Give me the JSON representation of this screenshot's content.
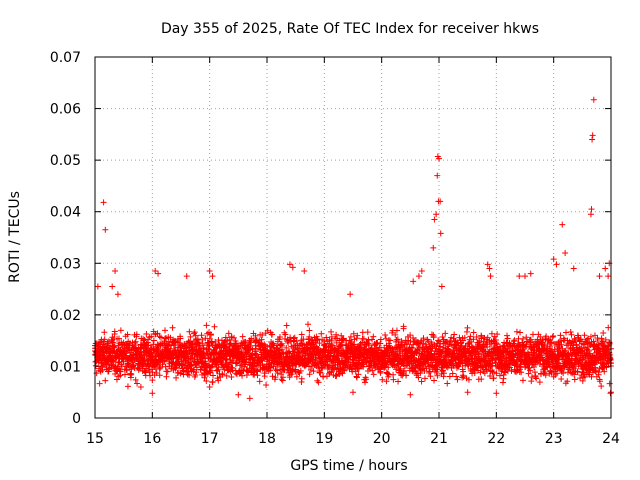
{
  "chart_data": {
    "type": "scatter",
    "title": "Day 355 of 2025, Rate Of TEC Index for receiver hkws",
    "xlabel": "GPS time / hours",
    "ylabel": "ROTI / TECUs",
    "xlim": [
      15,
      24
    ],
    "ylim": [
      0,
      0.07
    ],
    "x_ticks": [
      15,
      16,
      17,
      18,
      19,
      20,
      21,
      22,
      23,
      24
    ],
    "x_tick_labels": [
      "15",
      "16",
      "17",
      "18",
      "19",
      "20",
      "21",
      "22",
      "23",
      "24"
    ],
    "y_ticks": [
      0,
      0.01,
      0.02,
      0.03,
      0.04,
      0.05,
      0.06,
      0.07
    ],
    "y_tick_labels": [
      "0",
      "0.01",
      "0.02",
      "0.03",
      "0.04",
      "0.05",
      "0.06",
      "0.07"
    ],
    "grid": true,
    "marker": "+",
    "series": [
      {
        "name": "ROTI",
        "color": "#ff0000",
        "points": [
          [
            15.05,
            0.0255
          ],
          [
            15.15,
            0.0418
          ],
          [
            15.18,
            0.0365
          ],
          [
            15.3,
            0.0255
          ],
          [
            15.35,
            0.0285
          ],
          [
            15.4,
            0.024
          ],
          [
            16.05,
            0.0285
          ],
          [
            16.1,
            0.028
          ],
          [
            16.6,
            0.0275
          ],
          [
            17.0,
            0.0285
          ],
          [
            17.05,
            0.0275
          ],
          [
            18.4,
            0.0298
          ],
          [
            18.45,
            0.0292
          ],
          [
            18.65,
            0.0285
          ],
          [
            19.45,
            0.024
          ],
          [
            20.55,
            0.0265
          ],
          [
            20.65,
            0.0275
          ],
          [
            20.7,
            0.0285
          ],
          [
            20.9,
            0.033
          ],
          [
            20.92,
            0.0385
          ],
          [
            20.95,
            0.0395
          ],
          [
            20.97,
            0.047
          ],
          [
            20.98,
            0.0507
          ],
          [
            21.0,
            0.0503
          ],
          [
            20.99,
            0.042
          ],
          [
            21.02,
            0.042
          ],
          [
            21.03,
            0.0358
          ],
          [
            21.05,
            0.0255
          ],
          [
            21.85,
            0.0298
          ],
          [
            21.88,
            0.029
          ],
          [
            21.9,
            0.0275
          ],
          [
            22.4,
            0.0275
          ],
          [
            22.5,
            0.0275
          ],
          [
            22.6,
            0.028
          ],
          [
            23.0,
            0.0308
          ],
          [
            23.05,
            0.0298
          ],
          [
            23.15,
            0.0375
          ],
          [
            23.2,
            0.032
          ],
          [
            23.35,
            0.029
          ],
          [
            23.65,
            0.0395
          ],
          [
            23.66,
            0.0405
          ],
          [
            23.67,
            0.054
          ],
          [
            23.68,
            0.0548
          ],
          [
            23.7,
            0.0617
          ],
          [
            23.8,
            0.0275
          ],
          [
            23.9,
            0.029
          ],
          [
            23.95,
            0.0275
          ],
          [
            23.97,
            0.03
          ],
          [
            23.99,
            0.0048
          ],
          [
            15.0,
            0.013
          ],
          [
            15.1,
            0.009
          ],
          [
            15.2,
            0.011
          ],
          [
            15.5,
            0.012
          ],
          [
            15.8,
            0.006
          ],
          [
            16.0,
            0.0048
          ],
          [
            16.5,
            0.013
          ],
          [
            17.0,
            0.006
          ],
          [
            17.5,
            0.0045
          ],
          [
            17.7,
            0.0038
          ],
          [
            18.0,
            0.011
          ],
          [
            18.5,
            0.009
          ],
          [
            19.0,
            0.012
          ],
          [
            19.5,
            0.005
          ],
          [
            20.0,
            0.01
          ],
          [
            20.5,
            0.0045
          ],
          [
            21.0,
            0.011
          ],
          [
            21.5,
            0.005
          ],
          [
            22.0,
            0.0048
          ],
          [
            22.5,
            0.012
          ],
          [
            23.0,
            0.008
          ],
          [
            23.5,
            0.0095
          ],
          [
            24.0,
            0.005
          ]
        ],
        "band": {
          "description": "dense cloud of points across full time range",
          "typical_min": 0.004,
          "typical_max": 0.022,
          "center": 0.012
        }
      }
    ]
  }
}
